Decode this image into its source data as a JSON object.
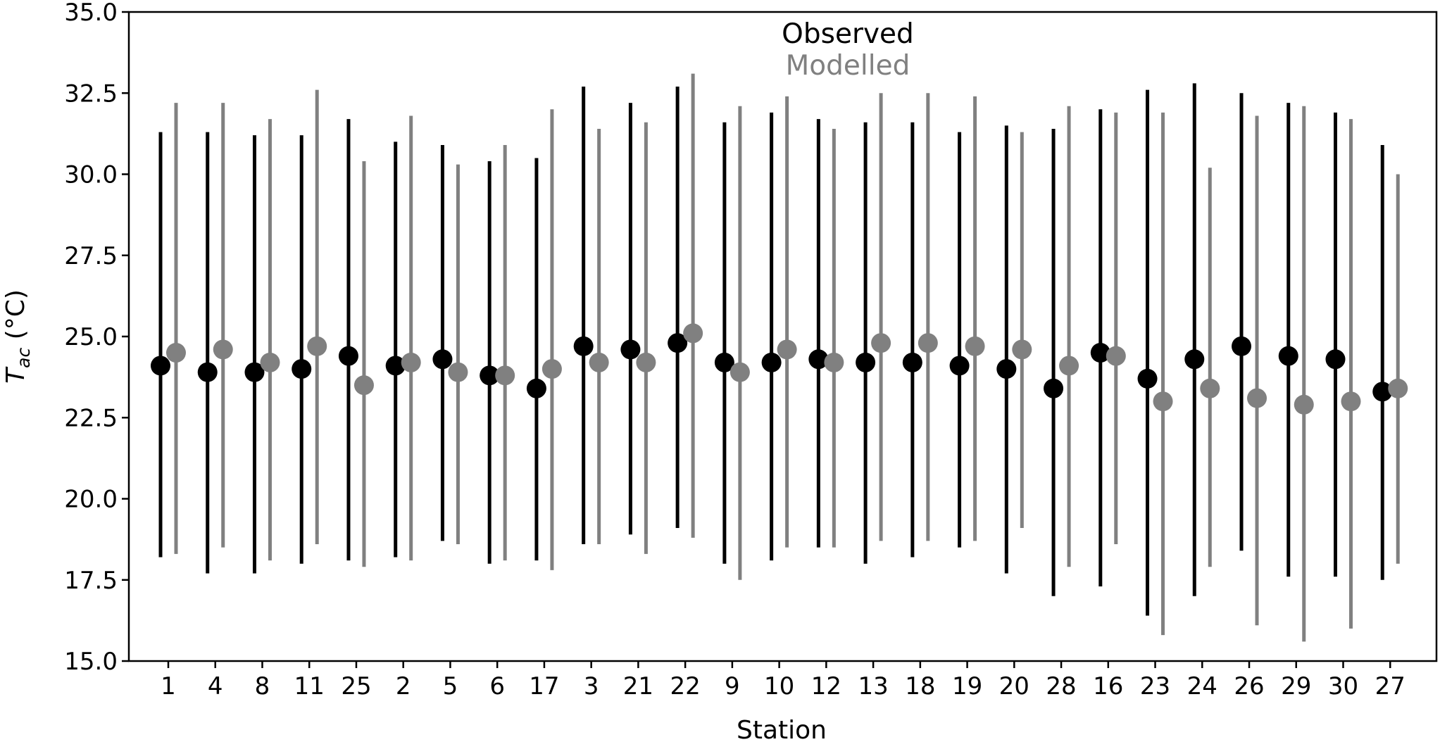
{
  "chart_data": {
    "type": "scatter",
    "title": "",
    "xlabel": "Station",
    "ylabel": {
      "base": "T",
      "subscript": "ac",
      "unit": " (°C)"
    },
    "ylim": [
      15.0,
      35.0
    ],
    "yticks": [
      "15.0",
      "17.5",
      "20.0",
      "22.5",
      "25.0",
      "27.5",
      "30.0",
      "32.5",
      "35.0"
    ],
    "legend": {
      "placement": "top-center",
      "entries": [
        {
          "label": "Observed",
          "color": "#000000"
        },
        {
          "label": "Modelled",
          "color": "#808080"
        }
      ]
    },
    "categories": [
      "1",
      "4",
      "8",
      "11",
      "25",
      "2",
      "5",
      "6",
      "17",
      "3",
      "21",
      "22",
      "9",
      "10",
      "12",
      "13",
      "18",
      "19",
      "20",
      "28",
      "16",
      "23",
      "24",
      "26",
      "29",
      "30",
      "27"
    ],
    "category_colors": [
      "#87ceeb",
      "#87ceeb",
      "#87ceeb",
      "#87ceeb",
      "#87ceeb",
      "#7cfc00",
      "#7cfc00",
      "#7cfc00",
      "#7cfc00",
      "#ffa500",
      "#ffa500",
      "#ffa500",
      "#ff0000",
      "#ff0000",
      "#ff0000",
      "#ff0000",
      "#ff0000",
      "#ff0000",
      "#ff0000",
      "#ba55d3",
      "#ba55d3",
      "#ba55d3",
      "#ba55d3",
      "#ba55d3",
      "#ba55d3",
      "#ba55d3",
      "#0000ff"
    ],
    "series": [
      {
        "name": "Observed",
        "color": "#000000",
        "mean": [
          24.1,
          23.9,
          23.9,
          24.0,
          24.4,
          24.1,
          24.3,
          23.8,
          23.4,
          24.7,
          24.6,
          24.8,
          24.2,
          24.2,
          24.3,
          24.2,
          24.2,
          24.1,
          24.0,
          23.4,
          24.5,
          23.7,
          24.3,
          24.7,
          24.4,
          24.3,
          23.3
        ],
        "min": [
          18.2,
          17.7,
          17.7,
          18.0,
          18.1,
          18.2,
          18.7,
          18.0,
          18.1,
          18.6,
          18.9,
          19.1,
          18.0,
          18.1,
          18.5,
          18.0,
          18.2,
          18.5,
          17.7,
          17.0,
          17.3,
          16.4,
          17.0,
          18.4,
          17.6,
          17.6,
          17.5
        ],
        "max": [
          31.3,
          31.3,
          31.2,
          31.2,
          31.7,
          31.0,
          30.9,
          30.4,
          30.5,
          32.7,
          32.2,
          32.7,
          31.6,
          31.9,
          31.7,
          31.6,
          31.6,
          31.3,
          31.5,
          31.4,
          32.0,
          32.6,
          32.8,
          32.5,
          32.2,
          31.9,
          30.9
        ]
      },
      {
        "name": "Modelled",
        "color": "#808080",
        "mean": [
          24.5,
          24.6,
          24.2,
          24.7,
          23.5,
          24.2,
          23.9,
          23.8,
          24.0,
          24.2,
          24.2,
          25.1,
          23.9,
          24.6,
          24.2,
          24.8,
          24.8,
          24.7,
          24.6,
          24.1,
          24.4,
          23.0,
          23.4,
          23.1,
          22.9,
          23.0,
          23.4
        ],
        "min": [
          18.3,
          18.5,
          18.1,
          18.6,
          17.9,
          18.1,
          18.6,
          18.1,
          17.8,
          18.6,
          18.3,
          18.8,
          17.5,
          18.5,
          18.5,
          18.7,
          18.7,
          18.7,
          19.1,
          17.9,
          18.6,
          15.8,
          17.9,
          16.1,
          15.6,
          16.0,
          18.0
        ],
        "max": [
          32.2,
          32.2,
          31.7,
          32.6,
          30.4,
          31.8,
          30.3,
          30.9,
          32.0,
          31.4,
          31.6,
          33.1,
          32.1,
          32.4,
          31.4,
          32.5,
          32.5,
          32.4,
          31.3,
          32.1,
          31.9,
          31.9,
          30.2,
          31.8,
          32.1,
          31.7,
          30.0
        ]
      }
    ]
  }
}
